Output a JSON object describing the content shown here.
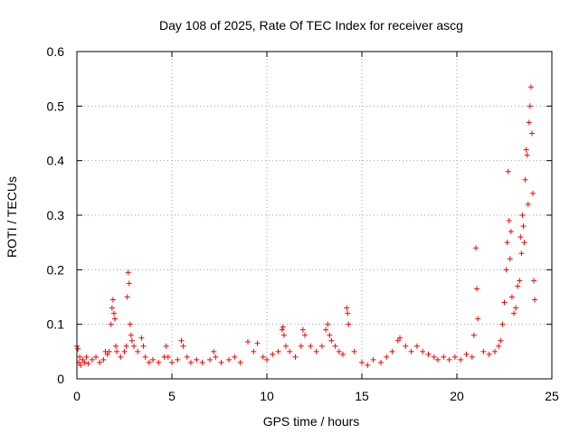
{
  "chart_data": {
    "type": "scatter",
    "title": "Day 108 of 2025, Rate Of TEC Index for receiver ascg",
    "xlabel": "GPS time / hours",
    "ylabel": "ROTI / TECUs",
    "xlim": [
      0,
      25
    ],
    "ylim": [
      0,
      0.6
    ],
    "xticks": [
      0,
      5,
      10,
      15,
      20,
      25
    ],
    "yticks": [
      0,
      0.1,
      0.2,
      0.3,
      0.4,
      0.5,
      0.6
    ],
    "xtick_labels": [
      "0",
      "5",
      "10",
      "15",
      "20",
      "25"
    ],
    "ytick_labels": [
      "0",
      "0.1",
      "0.2",
      "0.3",
      "0.4",
      "0.5",
      "0.6"
    ],
    "grid": true,
    "marker": "+",
    "series_color": "#ff0000",
    "series": [
      {
        "x": [
          0.0,
          0.05,
          0.1,
          0.15,
          0.2,
          0.3,
          0.4,
          0.5,
          0.6,
          0.8,
          1.0,
          1.2,
          1.4,
          1.5,
          1.6,
          1.7,
          1.8,
          1.85,
          1.9,
          1.95,
          2.0,
          2.05,
          2.1,
          2.3,
          2.5,
          2.6,
          2.65,
          2.7,
          2.75,
          2.8,
          2.85,
          2.9,
          3.0,
          3.2,
          3.4,
          3.5,
          3.6,
          3.8,
          4.0,
          4.3,
          4.6,
          4.7,
          4.8,
          5.0,
          5.3,
          5.5,
          5.6,
          5.8,
          6.0,
          6.3,
          6.6,
          7.0,
          7.2,
          7.3,
          7.6,
          8.0,
          8.3,
          8.6,
          9.0,
          9.3,
          9.5,
          9.8,
          10.0,
          10.3,
          10.6,
          10.8,
          10.85,
          10.9,
          11.0,
          11.2,
          11.5,
          11.8,
          11.9,
          12.0,
          12.3,
          12.6,
          12.9,
          13.1,
          13.2,
          13.3,
          13.4,
          13.6,
          13.8,
          14.0,
          14.2,
          14.25,
          14.3,
          14.6,
          15.0,
          15.3,
          15.6,
          16.0,
          16.3,
          16.6,
          16.9,
          17.0,
          17.3,
          17.6,
          17.9,
          18.2,
          18.5,
          18.8,
          19.0,
          19.3,
          19.6,
          19.9,
          20.2,
          20.5,
          20.8,
          20.9,
          21.0,
          21.05,
          21.1,
          21.4,
          21.7,
          22.0,
          22.2,
          22.3,
          22.4,
          22.5,
          22.6,
          22.65,
          22.7,
          22.75,
          22.8,
          22.85,
          22.9,
          23.0,
          23.1,
          23.2,
          23.3,
          23.35,
          23.4,
          23.45,
          23.5,
          23.55,
          23.6,
          23.65,
          23.7,
          23.75,
          23.8,
          23.85,
          23.9,
          23.95,
          24.0,
          24.05,
          24.1
        ],
        "y": [
          0.06,
          0.055,
          0.03,
          0.04,
          0.025,
          0.035,
          0.03,
          0.04,
          0.028,
          0.035,
          0.04,
          0.03,
          0.035,
          0.05,
          0.045,
          0.05,
          0.1,
          0.13,
          0.145,
          0.12,
          0.11,
          0.06,
          0.05,
          0.04,
          0.05,
          0.06,
          0.15,
          0.195,
          0.175,
          0.1,
          0.08,
          0.07,
          0.06,
          0.05,
          0.075,
          0.06,
          0.04,
          0.03,
          0.035,
          0.03,
          0.04,
          0.06,
          0.04,
          0.03,
          0.035,
          0.07,
          0.06,
          0.04,
          0.03,
          0.035,
          0.03,
          0.035,
          0.05,
          0.04,
          0.03,
          0.035,
          0.04,
          0.03,
          0.068,
          0.05,
          0.065,
          0.04,
          0.035,
          0.045,
          0.05,
          0.09,
          0.095,
          0.08,
          0.06,
          0.05,
          0.04,
          0.06,
          0.09,
          0.08,
          0.06,
          0.05,
          0.06,
          0.09,
          0.1,
          0.08,
          0.07,
          0.06,
          0.05,
          0.045,
          0.13,
          0.12,
          0.1,
          0.05,
          0.03,
          0.025,
          0.035,
          0.03,
          0.04,
          0.05,
          0.07,
          0.075,
          0.06,
          0.05,
          0.06,
          0.05,
          0.045,
          0.04,
          0.035,
          0.04,
          0.035,
          0.04,
          0.035,
          0.045,
          0.04,
          0.08,
          0.24,
          0.165,
          0.11,
          0.05,
          0.045,
          0.05,
          0.06,
          0.07,
          0.1,
          0.14,
          0.2,
          0.25,
          0.38,
          0.29,
          0.22,
          0.27,
          0.15,
          0.12,
          0.13,
          0.17,
          0.18,
          0.26,
          0.23,
          0.3,
          0.28,
          0.25,
          0.365,
          0.42,
          0.41,
          0.32,
          0.47,
          0.5,
          0.535,
          0.45,
          0.34,
          0.18,
          0.145
        ]
      }
    ]
  }
}
